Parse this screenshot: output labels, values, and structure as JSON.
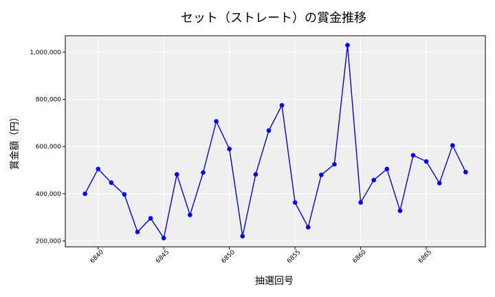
{
  "chart_data": {
    "type": "line",
    "title": "セット（ストレート）の賞金推移",
    "xlabel": "抽選回号",
    "ylabel": "賞金額（円）",
    "xlim": [
      6837.5,
      6869.5
    ],
    "ylim": [
      175000,
      1070000
    ],
    "x_ticks": [
      6840,
      6845,
      6850,
      6855,
      6860,
      6865
    ],
    "x_tick_labels": [
      "6840",
      "6845",
      "6850",
      "6855",
      "6860",
      "6865"
    ],
    "y_ticks": [
      200000,
      400000,
      600000,
      800000,
      1000000
    ],
    "y_tick_labels": [
      "200,000",
      "400,000",
      "600,000",
      "800,000",
      "1,000,000"
    ],
    "grid": true,
    "line_color": "#0000cc",
    "marker_color": "#0000ee",
    "plot_background": "#efefef",
    "x": [
      6839,
      6840,
      6841,
      6842,
      6843,
      6844,
      6845,
      6846,
      6847,
      6848,
      6849,
      6850,
      6851,
      6852,
      6853,
      6854,
      6855,
      6856,
      6857,
      6858,
      6859,
      6860,
      6861,
      6862,
      6863,
      6864,
      6865,
      6866,
      6867,
      6868
    ],
    "values": [
      400000,
      505000,
      447000,
      397000,
      238000,
      296000,
      212000,
      482000,
      310000,
      490000,
      707000,
      590000,
      220000,
      482000,
      668000,
      775000,
      363000,
      258000,
      480000,
      525000,
      1030000,
      363000,
      458000,
      505000,
      328000,
      563000,
      537000,
      445000,
      605000,
      492000
    ]
  }
}
